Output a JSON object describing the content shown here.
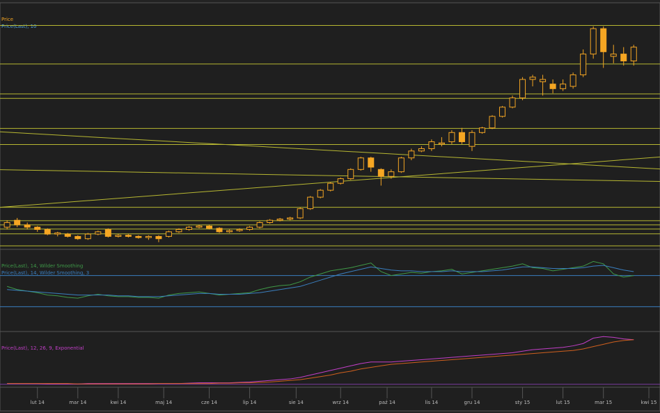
{
  "chart_data": [
    {
      "type": "candlestick",
      "legend": [
        "Price",
        "Price(Last), 10"
      ],
      "legend_colors": [
        "#f5a623",
        "#4aa3df"
      ],
      "xlim": [
        -0.7,
        64.6
      ],
      "ylim": [
        0,
        105
      ],
      "color": "#f5a623",
      "open": [
        9,
        12,
        10,
        9,
        8,
        6,
        6,
        5,
        4,
        6,
        8,
        5,
        5.5,
        5,
        4.5,
        5,
        5,
        7,
        8,
        9,
        9.5,
        8.5,
        7,
        7.5,
        8,
        9,
        11,
        12,
        12.5,
        13,
        17,
        22,
        25,
        28,
        30,
        34,
        39,
        34,
        31,
        33,
        39,
        42,
        43,
        45,
        46,
        50,
        44,
        50,
        52,
        57,
        61,
        65,
        73,
        72,
        71,
        69,
        70,
        75,
        84,
        95,
        83,
        84,
        81
      ],
      "close": [
        11,
        10,
        9,
        8,
        6,
        6.5,
        5,
        4,
        6,
        7,
        5,
        5.5,
        5,
        4.5,
        5,
        4,
        7,
        8,
        9,
        9.5,
        8.5,
        7,
        7.5,
        8,
        9,
        11,
        12,
        12.5,
        13,
        17,
        22,
        25,
        28,
        30,
        34,
        39,
        35,
        31,
        33,
        39,
        42,
        43,
        46,
        45.5,
        50,
        46,
        50,
        52,
        57,
        61,
        65,
        73,
        74,
        73,
        69,
        71,
        75,
        84,
        95,
        85,
        84,
        81,
        87
      ],
      "high": [
        12,
        13,
        11,
        9.5,
        8.5,
        7,
        6.5,
        5.5,
        6.5,
        7.5,
        8.5,
        6,
        6,
        5.5,
        5.5,
        5.5,
        7.5,
        8.5,
        9.5,
        10,
        10,
        9,
        8,
        8.5,
        9.5,
        11.5,
        12.5,
        13,
        13.5,
        17.5,
        22.5,
        25.5,
        28.5,
        30.5,
        34.5,
        39.5,
        39.5,
        34.5,
        34,
        39.5,
        43,
        44,
        47,
        48,
        51,
        52,
        51,
        52.5,
        57.5,
        61.5,
        66,
        74,
        75,
        75,
        73,
        73,
        76,
        86,
        96,
        96,
        88,
        87,
        88
      ],
      "low": [
        8,
        9,
        8,
        7,
        5.5,
        5,
        4.5,
        3.5,
        3.5,
        5.5,
        4.5,
        4.5,
        4.5,
        4,
        3.5,
        2.5,
        4.5,
        6.5,
        7.5,
        8.5,
        8,
        6.5,
        6.5,
        7,
        7.5,
        8.5,
        10.5,
        11.5,
        12,
        12.5,
        16.5,
        21.5,
        24.5,
        27.5,
        29.5,
        33.5,
        33,
        27,
        30,
        32.5,
        38,
        41.5,
        42,
        44,
        45,
        45,
        42,
        49.5,
        51.5,
        56.5,
        60.5,
        64,
        70,
        66,
        67,
        68,
        69,
        74,
        82,
        78,
        80,
        79,
        79
      ],
      "levels": [
        96.4,
        79.7,
        66.7,
        64.8,
        51.8,
        44.8,
        17.6,
        11.8,
        10,
        8.2,
        6.1,
        0.9
      ],
      "level_color": "#b8b832",
      "trendlines": [
        [
          50.3,
          34.2
        ],
        [
          33.9,
          28.8
        ],
        [
          17.6,
          39.4
        ]
      ]
    },
    {
      "type": "line",
      "legend": [
        "Price(Last), 14, Wilder Smoothing",
        "Price(Last), 14, Wilder Smoothing, 3"
      ],
      "xlim": [
        -0.7,
        64.6
      ],
      "ylim": [
        0,
        100
      ],
      "reference_lines": [
        30,
        70
      ],
      "reference_color": "#3a7fc0",
      "series": [
        {
          "color": "#3f9a48",
          "values": [
            56,
            52,
            50,
            48,
            45,
            44,
            42,
            41,
            44,
            46,
            44,
            43,
            43,
            42,
            42,
            41,
            45,
            47,
            48,
            49,
            47,
            45,
            46,
            47,
            48,
            52,
            55,
            57,
            58,
            62,
            68,
            72,
            76,
            78,
            80,
            83,
            86,
            75,
            70,
            72,
            74,
            73,
            75,
            76,
            78,
            72,
            74,
            76,
            78,
            80,
            82,
            85,
            80,
            79,
            76,
            78,
            80,
            82,
            88,
            85,
            72,
            68,
            70
          ]
        },
        {
          "color": "#3a7fc0",
          "values": [
            52,
            51,
            50,
            49,
            48,
            47,
            46,
            45,
            45,
            45,
            45,
            44,
            44,
            43,
            43,
            43,
            44,
            45,
            46,
            47,
            47,
            46,
            46,
            46,
            47,
            48,
            50,
            52,
            54,
            56,
            60,
            64,
            68,
            72,
            75,
            78,
            81,
            79,
            77,
            76,
            76,
            75,
            75,
            75,
            76,
            75,
            75,
            75,
            76,
            77,
            79,
            81,
            81,
            80,
            79,
            79,
            79,
            80,
            82,
            83,
            80,
            77,
            75
          ]
        }
      ]
    },
    {
      "type": "line",
      "legend": [
        "Price(Last), 12, 26, 9, Exponential"
      ],
      "xlim": [
        -0.7,
        64.6
      ],
      "ylim": [
        -2,
        65
      ],
      "reference_lines": [
        0
      ],
      "reference_color": "#7a3aa0",
      "series": [
        {
          "color": "#c23fc8",
          "values": [
            1,
            1,
            1,
            1,
            0.5,
            0.5,
            0.5,
            0.5,
            1,
            1,
            1,
            1,
            1,
            1,
            1,
            1,
            1,
            1,
            1.5,
            2,
            2,
            2,
            2,
            2.5,
            3,
            4,
            5,
            6,
            7,
            9,
            12,
            15,
            18,
            21,
            24,
            27,
            29,
            29,
            29,
            30,
            31,
            32,
            33,
            34,
            35,
            36,
            37,
            38,
            39,
            40,
            41,
            43,
            45,
            46,
            47,
            48,
            50,
            53,
            60,
            62,
            61,
            59,
            58
          ]
        },
        {
          "color": "#d0601e",
          "values": [
            1,
            1,
            1,
            1,
            1,
            1,
            1,
            0.5,
            0.5,
            0.5,
            0.5,
            0.5,
            0.5,
            0.5,
            0.5,
            1,
            1,
            1,
            1,
            1,
            1,
            1.5,
            1.5,
            2,
            2,
            2.5,
            3,
            4,
            5,
            6,
            8,
            10,
            12,
            15,
            17,
            20,
            22,
            24,
            26,
            27,
            28,
            29,
            30,
            31,
            32,
            33,
            34,
            35,
            36,
            37,
            38,
            39,
            40,
            41,
            42,
            43,
            44,
            46,
            49,
            52,
            55,
            57,
            58
          ]
        }
      ],
      "xticks": [
        {
          "value": 3,
          "label": "lut 14"
        },
        {
          "value": 7,
          "label": "mar 14"
        },
        {
          "value": 11,
          "label": "kwi 14"
        },
        {
          "value": 15.5,
          "label": "maj 14"
        },
        {
          "value": 20,
          "label": "cze 14"
        },
        {
          "value": 24,
          "label": "lip 14"
        },
        {
          "value": 28.6,
          "label": "sie 14"
        },
        {
          "value": 33,
          "label": "wrz 14"
        },
        {
          "value": 37.6,
          "label": "paź 14"
        },
        {
          "value": 42,
          "label": "lis 14"
        },
        {
          "value": 46,
          "label": "gru 14"
        },
        {
          "value": 51,
          "label": "sty 15"
        },
        {
          "value": 55,
          "label": "lut 15"
        },
        {
          "value": 59,
          "label": "mar 15"
        },
        {
          "value": 63.5,
          "label": "kwi 15"
        }
      ]
    }
  ]
}
